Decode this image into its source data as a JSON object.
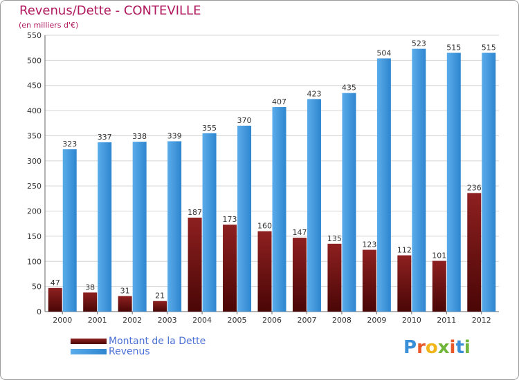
{
  "title": "Revenus/Dette - CONTEVILLE",
  "subtitle": "(en milliers d'€)",
  "colors": {
    "title": "#b0195e",
    "dette": "#7a1010",
    "revenus": "#3b93d8",
    "legend_text": "#4a6fd6"
  },
  "legend": {
    "dette_label": "Montant de la Dette",
    "revenus_label": "Revenus"
  },
  "logo": {
    "letters": [
      "P",
      "r",
      "o",
      "x",
      "i",
      "t",
      "i"
    ],
    "letter_colors": [
      "#3a8fd9",
      "#e8592a",
      "#f2b51c",
      "#6fb63a",
      "#e8592a",
      "#3a8fd9",
      "#6fb63a"
    ]
  },
  "chart_data": {
    "type": "bar",
    "categories": [
      "2000",
      "2001",
      "2002",
      "2003",
      "2004",
      "2005",
      "2006",
      "2007",
      "2008",
      "2009",
      "2010",
      "2011",
      "2012"
    ],
    "series": [
      {
        "name": "Montant de la Dette",
        "values": [
          47,
          38,
          31,
          21,
          187,
          173,
          160,
          147,
          135,
          123,
          112,
          101,
          236
        ]
      },
      {
        "name": "Revenus",
        "values": [
          323,
          337,
          338,
          339,
          355,
          370,
          407,
          423,
          435,
          504,
          523,
          515,
          515
        ]
      }
    ],
    "ylim": [
      0,
      550
    ],
    "yticks": [
      0,
      50,
      100,
      150,
      200,
      250,
      300,
      350,
      400,
      450,
      500,
      550
    ],
    "grid": true,
    "legend_position": "bottom-left"
  }
}
